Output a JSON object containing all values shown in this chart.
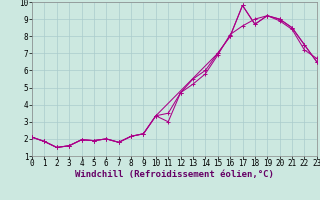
{
  "background_color": "#cce8e0",
  "grid_color": "#aacccc",
  "line_color": "#aa0088",
  "xlabel": "Windchill (Refroidissement éolien,°C)",
  "ylabel_ticks": [
    1,
    2,
    3,
    4,
    5,
    6,
    7,
    8,
    9,
    10
  ],
  "xlabel_ticks": [
    0,
    1,
    2,
    3,
    4,
    5,
    6,
    7,
    8,
    9,
    10,
    11,
    12,
    13,
    14,
    15,
    16,
    17,
    18,
    19,
    20,
    21,
    22,
    23
  ],
  "xlim": [
    0,
    23
  ],
  "ylim": [
    1,
    10
  ],
  "line1_x": [
    0,
    1,
    2,
    3,
    4,
    5,
    6,
    7,
    8,
    9,
    10,
    11,
    12,
    13,
    14,
    15,
    16,
    17,
    18,
    19,
    20,
    21,
    22,
    23
  ],
  "line1_y": [
    2.1,
    1.85,
    1.5,
    1.6,
    1.95,
    1.9,
    2.0,
    1.8,
    2.15,
    2.3,
    3.35,
    3.5,
    4.7,
    5.5,
    6.0,
    7.0,
    8.0,
    9.8,
    8.7,
    9.2,
    9.0,
    8.5,
    7.5,
    6.5
  ],
  "line2_x": [
    0,
    1,
    2,
    3,
    4,
    5,
    6,
    7,
    8,
    9,
    10,
    11,
    12,
    13,
    14,
    15,
    16,
    17,
    18,
    19,
    20,
    21,
    22,
    23
  ],
  "line2_y": [
    2.1,
    1.85,
    1.5,
    1.6,
    1.95,
    1.9,
    2.0,
    1.8,
    2.15,
    2.3,
    3.35,
    3.0,
    4.7,
    5.2,
    5.8,
    6.9,
    8.1,
    8.6,
    9.0,
    9.2,
    8.9,
    8.4,
    7.2,
    6.7
  ],
  "line3_x": [
    0,
    1,
    2,
    3,
    4,
    5,
    6,
    7,
    8,
    9,
    10,
    15,
    16,
    17,
    18,
    19,
    20,
    21,
    22,
    23
  ],
  "line3_y": [
    2.1,
    1.85,
    1.5,
    1.6,
    1.95,
    1.9,
    2.0,
    1.8,
    2.15,
    2.3,
    3.35,
    7.0,
    8.0,
    9.8,
    8.7,
    9.2,
    9.0,
    8.5,
    7.5,
    6.5
  ],
  "font_family": "monospace",
  "tick_fontsize": 5.5,
  "label_fontsize": 6.5,
  "linewidth": 0.75,
  "markersize": 3.0
}
